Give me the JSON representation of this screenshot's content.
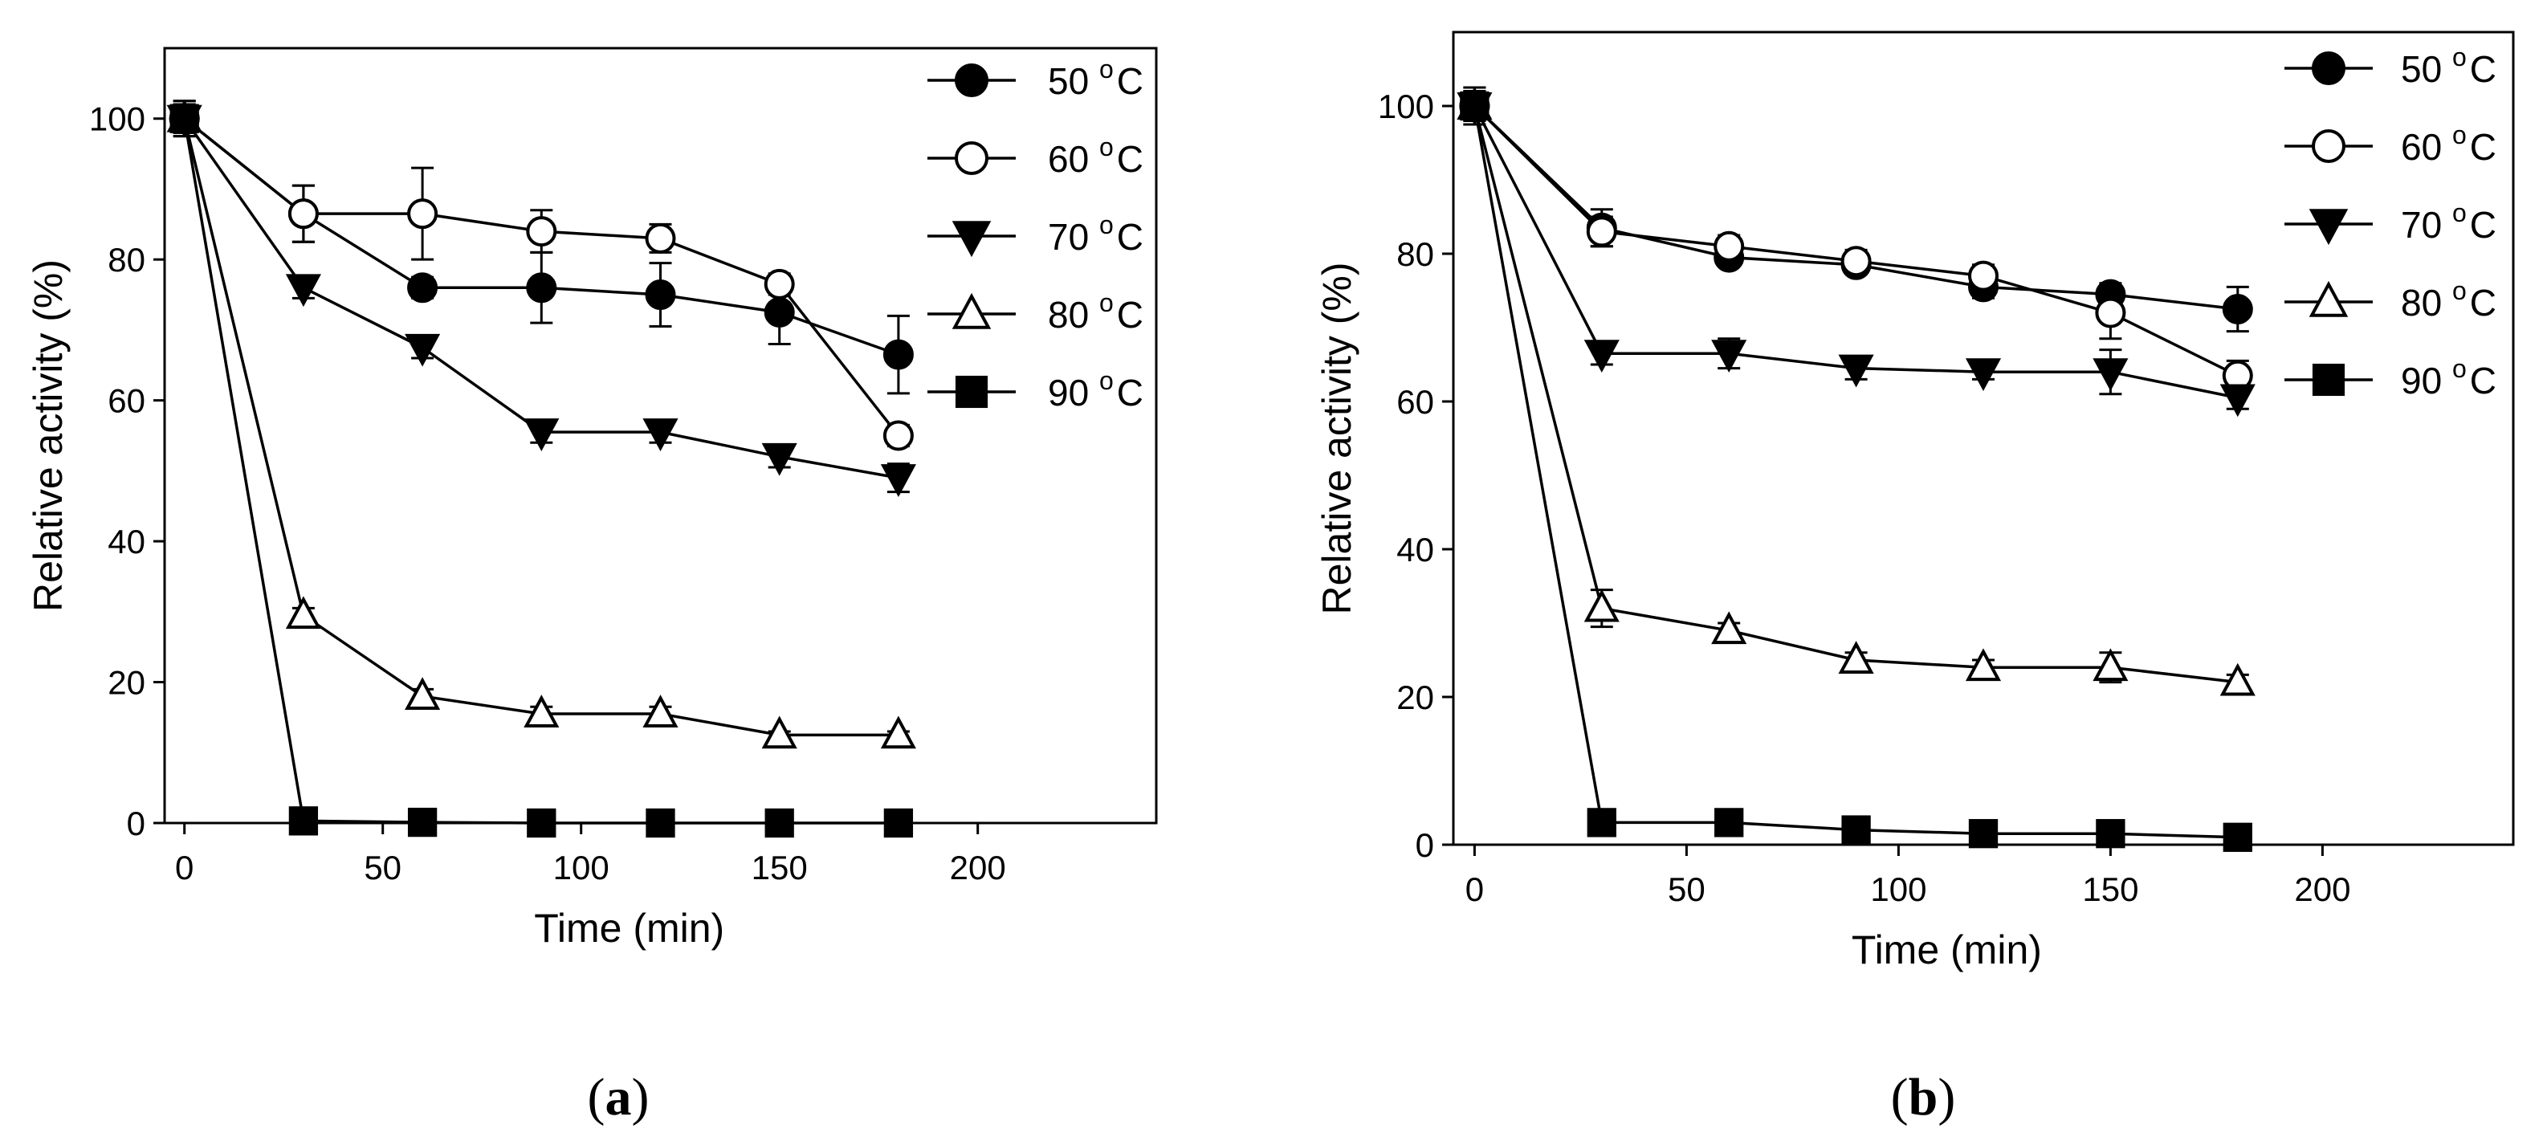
{
  "chart_data": [
    {
      "type": "line",
      "panel_label": "(a)",
      "panel_letter": "a",
      "xlabel": "Time (min)",
      "ylabel": "Relative activity  (%)",
      "xlim": [
        -5,
        245
      ],
      "ylim": [
        0,
        110
      ],
      "x_ticks": [
        0,
        50,
        100,
        150,
        200
      ],
      "y_ticks": [
        0,
        20,
        40,
        60,
        80,
        100
      ],
      "x_tick_labels": [
        "0",
        "50",
        "100",
        "150",
        "200"
      ],
      "y_tick_labels": [
        "0",
        "20",
        "40",
        "60",
        "80",
        "100"
      ],
      "legend_position": "top-right",
      "x": [
        0,
        30,
        60,
        90,
        120,
        150,
        180
      ],
      "series": [
        {
          "name": "50 oC",
          "label": "50 ",
          "unit_sup": "o",
          "unit": "C",
          "marker": "circle-filled",
          "values": [
            100,
            86.5,
            76,
            76,
            75,
            72.5,
            66.5
          ],
          "errors": [
            2.5,
            4,
            1.5,
            5,
            4.5,
            4.5,
            5.5
          ]
        },
        {
          "name": "60 oC",
          "label": "60 ",
          "unit_sup": "o",
          "unit": "C",
          "marker": "circle-open",
          "values": [
            100,
            86.5,
            86.5,
            84,
            83,
            76.5,
            55
          ],
          "errors": [
            2.5,
            4,
            6.5,
            3,
            2,
            1.5,
            1.5
          ]
        },
        {
          "name": "70 oC",
          "label": "70 ",
          "unit_sup": "o",
          "unit": "C",
          "marker": "triangle-down-filled",
          "values": [
            100,
            76,
            67.5,
            55.5,
            55.5,
            52,
            49
          ],
          "errors": [
            2,
            1.5,
            1.5,
            1.5,
            1.5,
            1.5,
            2
          ]
        },
        {
          "name": "80 oC",
          "label": "80 ",
          "unit_sup": "o",
          "unit": "C",
          "marker": "triangle-up-open",
          "values": [
            100,
            29.5,
            18,
            15.5,
            15.5,
            12.5,
            12.5
          ],
          "errors": [
            2,
            1,
            1,
            1,
            1,
            0.5,
            0.5
          ]
        },
        {
          "name": "90 oC",
          "label": "90 ",
          "unit_sup": "o",
          "unit": "C",
          "marker": "square-filled",
          "values": [
            100,
            0.3,
            0.1,
            0,
            0,
            0,
            0
          ],
          "errors": [
            2,
            0,
            0,
            0,
            0,
            0,
            0
          ]
        }
      ]
    },
    {
      "type": "line",
      "panel_label": "(b)",
      "panel_letter": "b",
      "xlabel": "Time (min)",
      "ylabel": "Relative activity  (%)",
      "xlim": [
        -5,
        245
      ],
      "ylim": [
        0,
        110
      ],
      "x_ticks": [
        0,
        50,
        100,
        150,
        200
      ],
      "y_ticks": [
        0,
        20,
        40,
        60,
        80,
        100
      ],
      "x_tick_labels": [
        "0",
        "50",
        "100",
        "150",
        "200"
      ],
      "y_tick_labels": [
        "0",
        "20",
        "40",
        "60",
        "80",
        "100"
      ],
      "legend_position": "top-right",
      "x": [
        0,
        30,
        60,
        90,
        120,
        150,
        180
      ],
      "series": [
        {
          "name": "50 oC",
          "label": "50 ",
          "unit_sup": "o",
          "unit": "C",
          "marker": "circle-filled",
          "values": [
            100,
            83.5,
            79.5,
            78.5,
            75.5,
            74.5,
            72.5
          ],
          "errors": [
            2.5,
            2.5,
            1,
            1,
            1.5,
            1.5,
            3
          ]
        },
        {
          "name": "60 oC",
          "label": "60 ",
          "unit_sup": "o",
          "unit": "C",
          "marker": "circle-open",
          "values": [
            100,
            83,
            81,
            79,
            77,
            72,
            63.5
          ],
          "errors": [
            2.5,
            2,
            1.5,
            1.5,
            1.5,
            3.5,
            2
          ]
        },
        {
          "name": "70 oC",
          "label": "70 ",
          "unit_sup": "o",
          "unit": "C",
          "marker": "triangle-down-filled",
          "values": [
            100,
            66.5,
            66.5,
            64.5,
            64,
            64,
            60.5
          ],
          "errors": [
            2,
            1.5,
            2,
            1.5,
            1,
            3,
            1.5
          ]
        },
        {
          "name": "80 oC",
          "label": "80 ",
          "unit_sup": "o",
          "unit": "C",
          "marker": "triangle-up-open",
          "values": [
            100,
            32,
            29,
            25,
            24,
            24,
            22
          ],
          "errors": [
            2,
            2.5,
            1,
            1,
            1,
            2,
            1
          ]
        },
        {
          "name": "90 oC",
          "label": "90 ",
          "unit_sup": "o",
          "unit": "C",
          "marker": "square-filled",
          "values": [
            100,
            3,
            3,
            2,
            1.5,
            1.5,
            1
          ],
          "errors": [
            2,
            0.5,
            0.5,
            0.5,
            0.5,
            0.5,
            0.5
          ]
        }
      ]
    }
  ]
}
